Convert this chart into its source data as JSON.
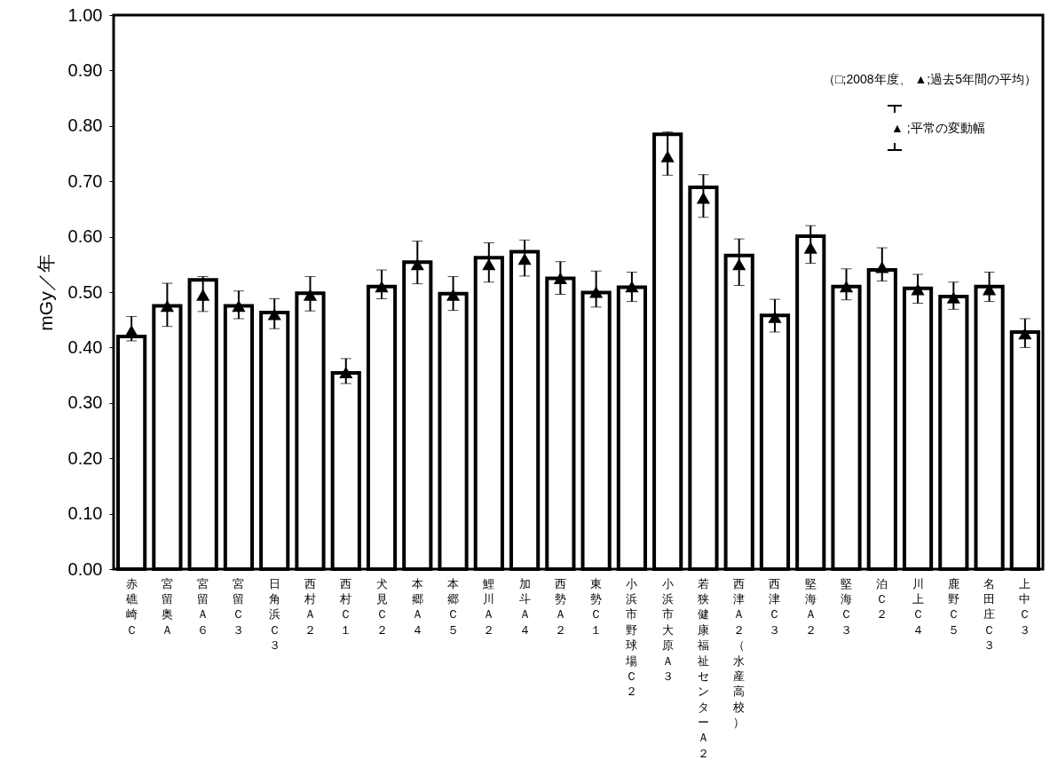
{
  "chart_data": {
    "type": "bar",
    "ylabel": "mGy／年",
    "categories": [
      "赤礁崎Ｃ",
      "宮留奥Ａ",
      "宮留Ａ６",
      "宮留Ｃ３",
      "日角浜Ｃ３",
      "西村Ａ２",
      "西村Ｃ１",
      "犬見Ｃ２",
      "本郷Ａ４",
      "本郷Ｃ５",
      "鯉川Ａ２",
      "加斗Ａ４",
      "西勢Ａ２",
      "東勢Ｃ１",
      "小浜市野球場Ｃ２",
      "小浜市大原Ａ３",
      "若狭健康福祉センターＡ２",
      "西津Ａ２（水産高校）",
      "西津Ｃ３",
      "堅海Ａ２",
      "堅海Ｃ３",
      "泊Ｃ２",
      "川上Ｃ４",
      "鹿野Ｃ５",
      "名田庄Ｃ３",
      "上中Ｃ３"
    ],
    "series": [
      {
        "type": "bar",
        "color": "#ffffff",
        "values": [
          0.42,
          0.475,
          0.522,
          0.475,
          0.463,
          0.498,
          0.354,
          0.51,
          0.554,
          0.497,
          0.562,
          0.573,
          0.525,
          0.499,
          0.509,
          0.785,
          0.689,
          0.566,
          0.458,
          0.601,
          0.51,
          0.54,
          0.507,
          0.492,
          0.51,
          0.428
        ]
      },
      {
        "type": "scatter",
        "color": "#000000",
        "values": [
          0.43,
          0.475,
          0.495,
          0.475,
          0.46,
          0.495,
          0.355,
          0.51,
          0.55,
          0.495,
          0.55,
          0.56,
          0.525,
          0.5,
          0.51,
          0.745,
          0.67,
          0.55,
          0.455,
          0.58,
          0.51,
          0.545,
          0.505,
          0.49,
          0.505,
          0.425
        ],
        "errors": [
          [
            0.412,
            0.456
          ],
          [
            0.438,
            0.516
          ],
          [
            0.465,
            0.528
          ],
          [
            0.452,
            0.502
          ],
          [
            0.434,
            0.488
          ],
          [
            0.466,
            0.528
          ],
          [
            0.335,
            0.38
          ],
          [
            0.488,
            0.54
          ],
          [
            0.515,
            0.592
          ],
          [
            0.467,
            0.528
          ],
          [
            0.518,
            0.589
          ],
          [
            0.529,
            0.594
          ],
          [
            0.496,
            0.555
          ],
          [
            0.473,
            0.538
          ],
          [
            0.483,
            0.536
          ],
          [
            0.711,
            0.789
          ],
          [
            0.635,
            0.712
          ],
          [
            0.512,
            0.596
          ],
          [
            0.428,
            0.487
          ],
          [
            0.552,
            0.62
          ],
          [
            0.486,
            0.542
          ],
          [
            0.52,
            0.58
          ],
          [
            0.48,
            0.532
          ],
          [
            0.469,
            0.518
          ],
          [
            0.483,
            0.536
          ],
          [
            0.4,
            0.452
          ]
        ]
      }
    ],
    "marker": "triangle",
    "ylim": [
      0,
      1
    ],
    "yticks": [
      {
        "value": 0,
        "label": "0.00"
      },
      {
        "value": 0.1,
        "label": "0.10"
      },
      {
        "value": 0.2,
        "label": "0.20"
      },
      {
        "value": 0.3,
        "label": "0.30"
      },
      {
        "value": 0.4,
        "label": "0.40"
      },
      {
        "value": 0.5,
        "label": "0.50"
      },
      {
        "value": 0.6,
        "label": "0.60"
      },
      {
        "value": 0.7,
        "label": "0.70"
      },
      {
        "value": 0.8,
        "label": "0.80"
      },
      {
        "value": 0.9,
        "label": "0.90"
      },
      {
        "value": 1,
        "label": "1.00"
      }
    ],
    "grid": false,
    "annotations": [
      "（□;2008年度、 ▲;過去5年間の平均）",
      "▲ ;平常の変動幅"
    ]
  }
}
